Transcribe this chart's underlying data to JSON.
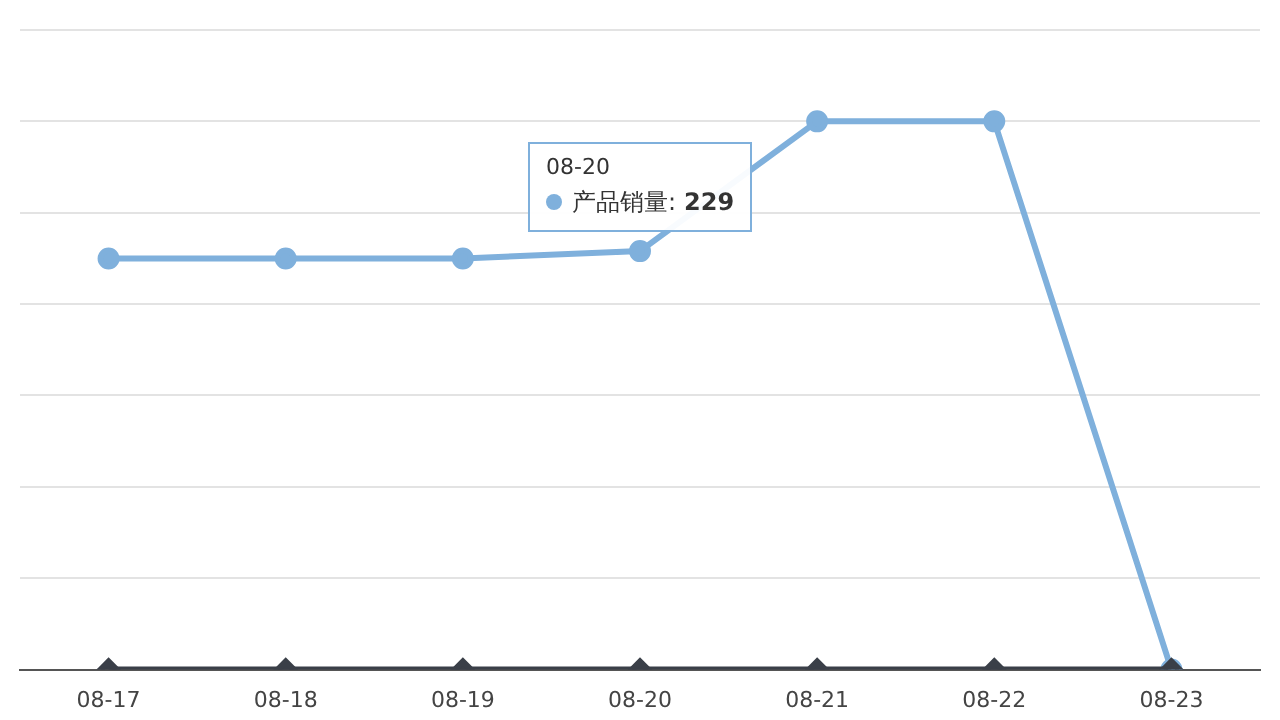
{
  "chart_data": {
    "type": "line",
    "categories": [
      "08-17",
      "08-18",
      "08-19",
      "08-20",
      "08-21",
      "08-22",
      "08-23"
    ],
    "series": [
      {
        "name": "产品销量:",
        "color": "#7fb0dc",
        "marker": "circle",
        "values": [
          225,
          225,
          225,
          229,
          300,
          300,
          0
        ],
        "value_labels": [
          null,
          null,
          null,
          "229",
          null,
          null,
          null
        ]
      },
      {
        "color": "#3a3f48",
        "marker": "diamond",
        "values": [
          0,
          0,
          0,
          0,
          0,
          0,
          0
        ]
      }
    ],
    "annotations": [
      "08-20"
    ],
    "ylim": [
      0,
      350
    ],
    "yticks": [
      {
        "value": 0,
        "label": null
      },
      {
        "value": 50,
        "label": null
      },
      {
        "value": 100,
        "label": null
      },
      {
        "value": 150,
        "label": null
      },
      {
        "value": 200,
        "label": null
      },
      {
        "value": 250,
        "label": null
      },
      {
        "value": 300,
        "label": null
      },
      {
        "value": 350,
        "label": null
      }
    ],
    "tick_labels": "x",
    "grid": "y",
    "legend": "top"
  }
}
